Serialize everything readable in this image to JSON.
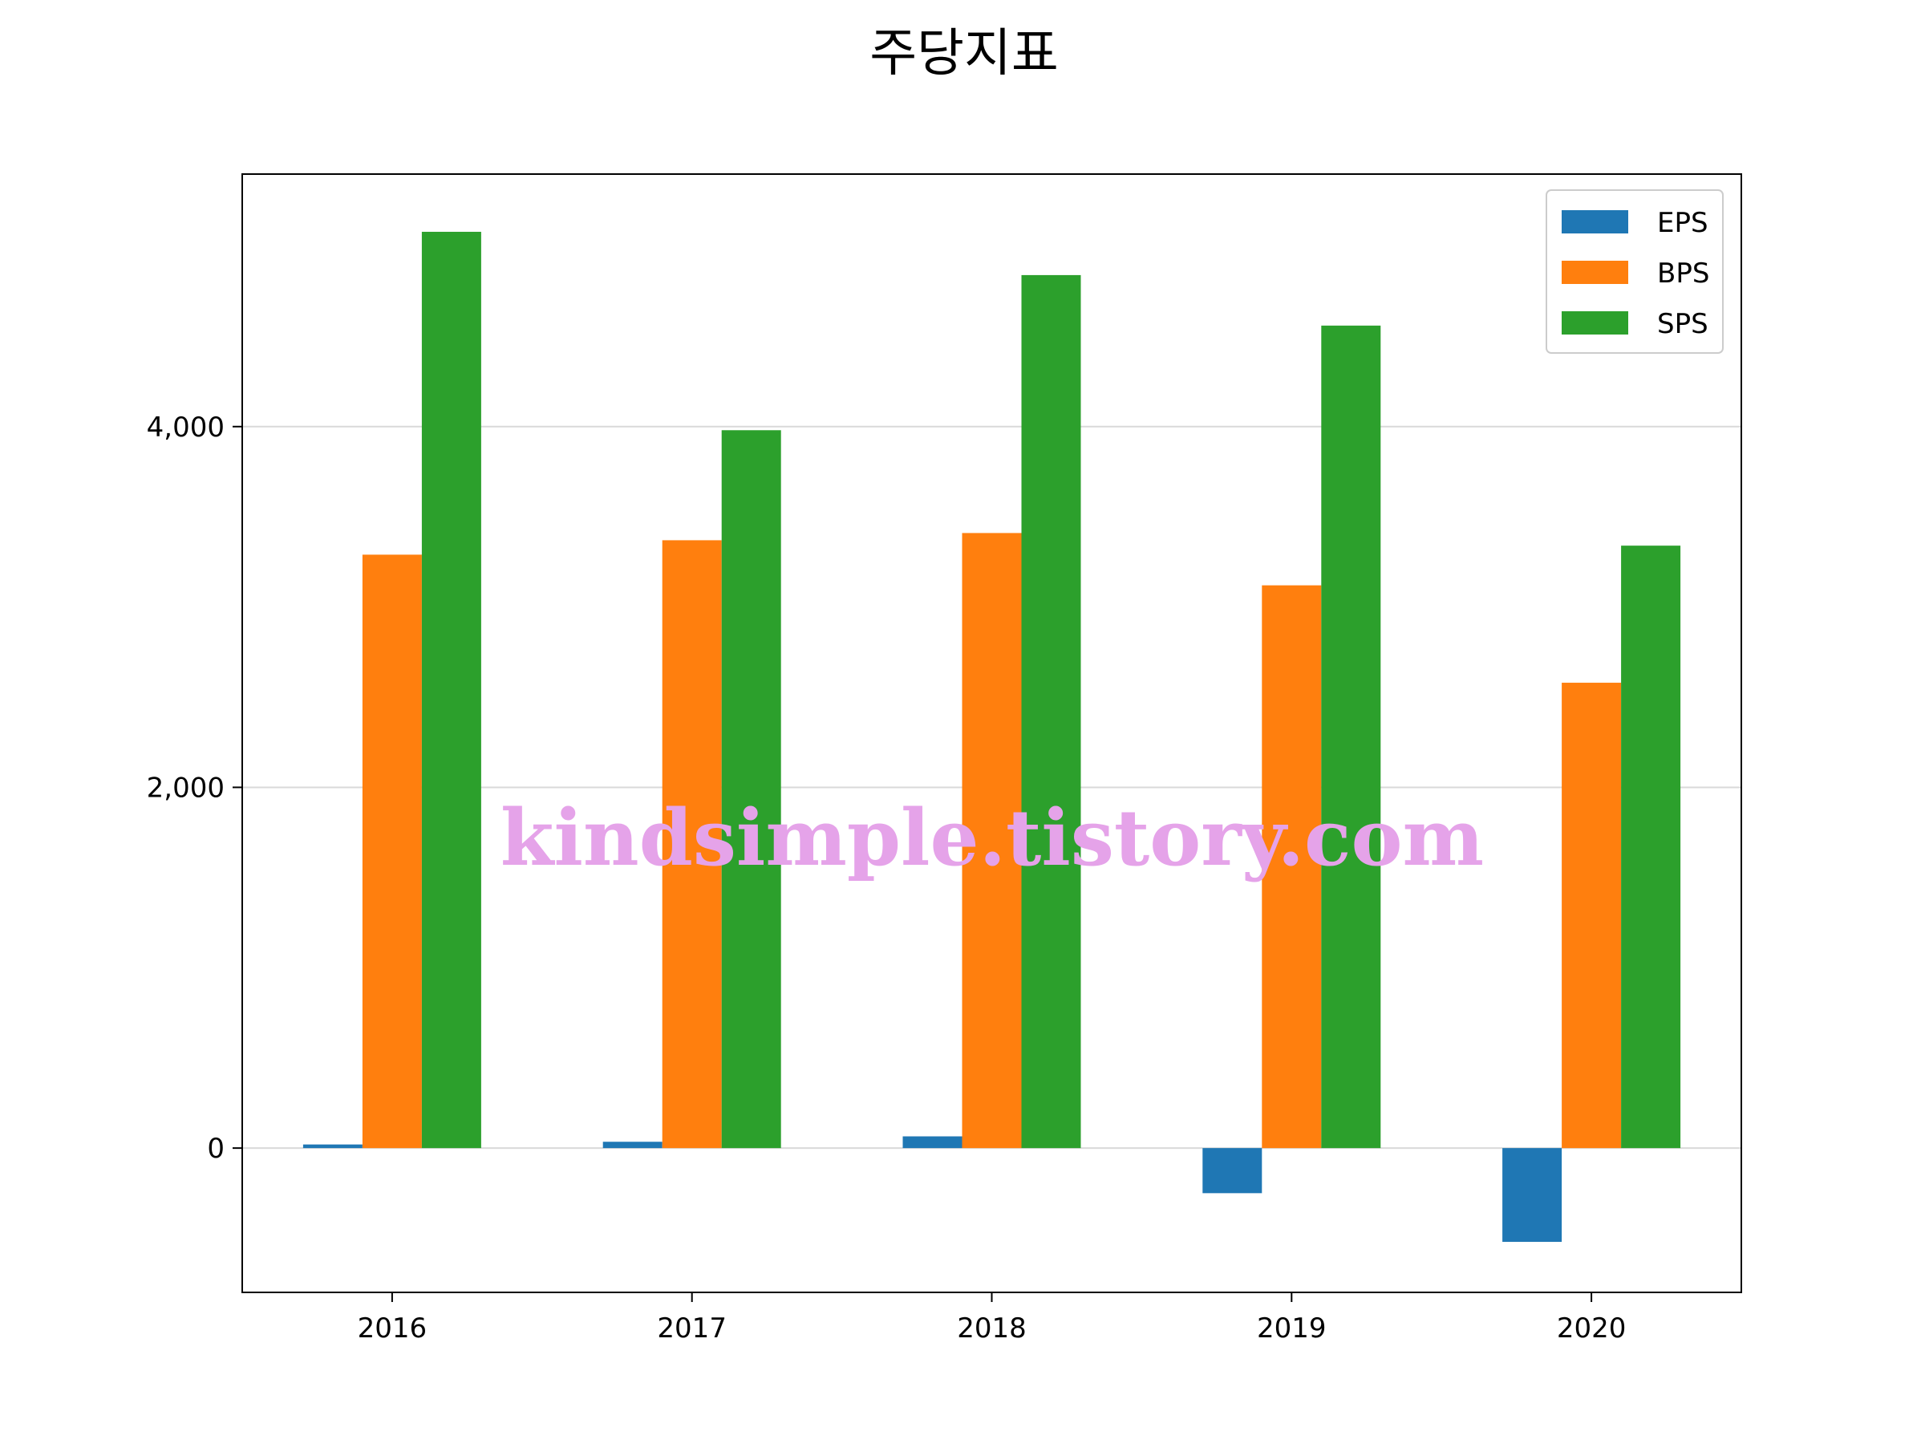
{
  "chart_data": {
    "type": "bar",
    "title": "주당지표",
    "xlabel": "",
    "ylabel": "",
    "categories": [
      "2016",
      "2017",
      "2018",
      "2019",
      "2020"
    ],
    "series": [
      {
        "name": "EPS",
        "color": "#1f77b4",
        "values": [
          20,
          35,
          65,
          -250,
          -520
        ]
      },
      {
        "name": "BPS",
        "color": "#ff7f0e",
        "values": [
          3290,
          3370,
          3410,
          3120,
          2580
        ]
      },
      {
        "name": "SPS",
        "color": "#2ca02c",
        "values": [
          5080,
          3980,
          4840,
          4560,
          3340
        ]
      }
    ],
    "ylim": [
      -800,
      5400
    ],
    "yticks": [
      0,
      2000,
      4000
    ],
    "ytick_labels": [
      "0",
      "2,000",
      "4,000"
    ],
    "grid": "y",
    "legend_position": "top-right",
    "watermark": "kindsimple.tistory.com"
  }
}
